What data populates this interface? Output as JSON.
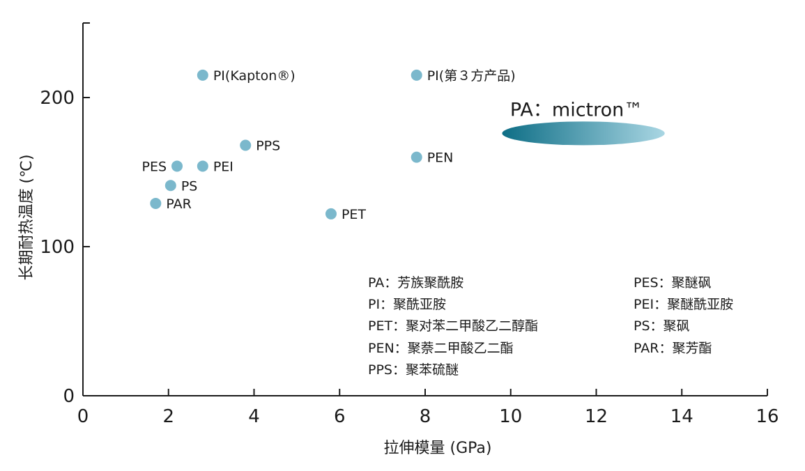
{
  "chart_data": {
    "type": "scatter",
    "xlabel": "拉伸模量 (GPa)",
    "ylabel": "长期耐热温度 (℃)",
    "xlim": [
      0,
      16
    ],
    "ylim": [
      0,
      250
    ],
    "x_ticks": [
      0,
      2,
      4,
      6,
      8,
      10,
      12,
      14,
      16
    ],
    "y_ticks": [
      0,
      100,
      200
    ],
    "points": [
      {
        "label": "PI(Kapton®)",
        "x": 2.8,
        "y": 215,
        "label_side": "right"
      },
      {
        "label": "PI(第３方产品)",
        "x": 7.8,
        "y": 215,
        "label_side": "right"
      },
      {
        "label": "PPS",
        "x": 3.8,
        "y": 168,
        "label_side": "right"
      },
      {
        "label": "PEN",
        "x": 7.8,
        "y": 160,
        "label_side": "right"
      },
      {
        "label": "PES",
        "x": 2.2,
        "y": 154,
        "label_side": "left"
      },
      {
        "label": "PEI",
        "x": 2.8,
        "y": 154,
        "label_side": "right"
      },
      {
        "label": "PS",
        "x": 2.05,
        "y": 141,
        "label_side": "right"
      },
      {
        "label": "PAR",
        "x": 1.7,
        "y": 129,
        "label_side": "right"
      },
      {
        "label": "PET",
        "x": 5.8,
        "y": 122,
        "label_side": "right"
      }
    ],
    "highlight_region": {
      "label": "PA：mictron™",
      "x_range": [
        9.8,
        13.6
      ],
      "y_center": 176
    },
    "legend_left": [
      "PA：芳族聚酰胺",
      "PI：聚酰亚胺",
      "PET：聚对苯二甲酸乙二醇酯",
      "PEN：聚萘二甲酸乙二酯",
      "PPS：聚苯硫醚"
    ],
    "legend_right": [
      "PES：聚醚砜",
      "PEI：聚醚酰亚胺",
      "PS：聚砜",
      "PAR：聚芳酯"
    ],
    "grid": false
  },
  "colors": {
    "point": "#7bb8cc",
    "ellipse_dark": "#0e6e86",
    "ellipse_light": "#a9d6e3",
    "axis": "#1a1a1a"
  }
}
